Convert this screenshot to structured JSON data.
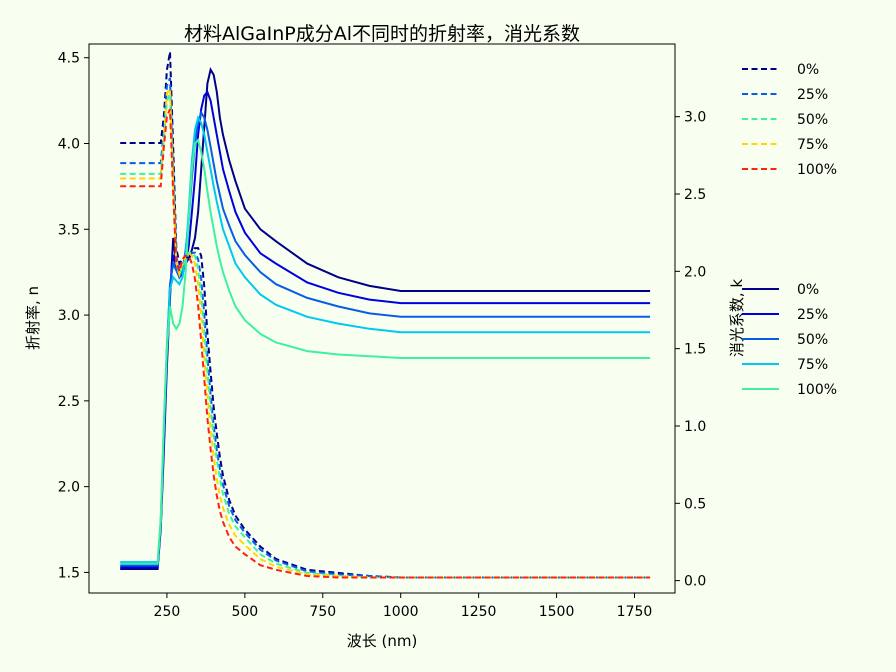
{
  "chart_data": {
    "type": "line",
    "title": "材料AlGaInP成分Al不同时的折射率，消光系数",
    "xlabel": "波长 (nm)",
    "ylabel_left": "折射率, n",
    "ylabel_right": "消光系数, k",
    "xlim": [
      0,
      1880
    ],
    "ylim_left": [
      1.38,
      4.58
    ],
    "ylim_right": [
      -0.08,
      3.47
    ],
    "x_ticks": [
      250,
      500,
      750,
      1000,
      1250,
      1500,
      1750
    ],
    "y_ticks_left": [
      1.5,
      2.0,
      2.5,
      3.0,
      3.5,
      4.0,
      4.5
    ],
    "y_ticks_right": [
      0.0,
      0.5,
      1.0,
      1.5,
      2.0,
      2.5,
      3.0
    ],
    "grid": false,
    "x": [
      100,
      220,
      230,
      240,
      250,
      260,
      270,
      280,
      290,
      300,
      310,
      320,
      330,
      340,
      350,
      360,
      370,
      380,
      390,
      400,
      410,
      420,
      430,
      450,
      470,
      500,
      550,
      600,
      700,
      800,
      900,
      1000,
      1200,
      1400,
      1600,
      1800
    ],
    "legend_n": {
      "placement": "outside right, lower",
      "entries": [
        "0%",
        "25%",
        "50%",
        "75%",
        "100%"
      ]
    },
    "legend_k": {
      "placement": "outside right, upper",
      "entries": [
        "0%",
        "25%",
        "50%",
        "75%",
        "100%"
      ]
    },
    "series_n": [
      {
        "name": "0%",
        "color": "#00008b",
        "axis": "left",
        "style": "solid",
        "values": [
          1.52,
          1.52,
          1.75,
          2.2,
          2.7,
          3.1,
          3.45,
          3.3,
          3.23,
          3.25,
          3.3,
          3.33,
          3.38,
          3.45,
          3.6,
          3.85,
          4.1,
          4.35,
          4.43,
          4.4,
          4.3,
          4.15,
          4.05,
          3.9,
          3.78,
          3.62,
          3.5,
          3.43,
          3.3,
          3.22,
          3.17,
          3.14,
          3.14,
          3.14,
          3.14,
          3.14
        ]
      },
      {
        "name": "25%",
        "color": "#0000e0",
        "axis": "left",
        "style": "solid",
        "values": [
          1.53,
          1.53,
          1.77,
          2.25,
          2.75,
          3.15,
          3.35,
          3.28,
          3.22,
          3.24,
          3.3,
          3.4,
          3.6,
          3.8,
          4.05,
          4.2,
          4.28,
          4.3,
          4.25,
          4.15,
          4.05,
          3.95,
          3.85,
          3.72,
          3.6,
          3.48,
          3.36,
          3.3,
          3.19,
          3.13,
          3.09,
          3.07,
          3.07,
          3.07,
          3.07,
          3.07
        ]
      },
      {
        "name": "50%",
        "color": "#0a5ce6",
        "axis": "left",
        "style": "solid",
        "values": [
          1.54,
          1.54,
          1.78,
          2.3,
          2.8,
          3.18,
          3.3,
          3.26,
          3.22,
          3.26,
          3.38,
          3.55,
          3.8,
          4.0,
          4.12,
          4.18,
          4.15,
          4.08,
          3.98,
          3.88,
          3.78,
          3.7,
          3.62,
          3.52,
          3.43,
          3.35,
          3.25,
          3.18,
          3.1,
          3.05,
          3.01,
          2.99,
          2.99,
          2.99,
          2.99,
          2.99
        ]
      },
      {
        "name": "75%",
        "color": "#00c8f0",
        "axis": "left",
        "style": "solid",
        "values": [
          1.56,
          1.56,
          1.8,
          2.35,
          2.82,
          3.15,
          3.22,
          3.2,
          3.18,
          3.22,
          3.35,
          3.6,
          3.9,
          4.08,
          4.15,
          4.12,
          4.05,
          3.95,
          3.85,
          3.75,
          3.66,
          3.58,
          3.5,
          3.4,
          3.3,
          3.22,
          3.12,
          3.06,
          2.99,
          2.95,
          2.92,
          2.9,
          2.9,
          2.9,
          2.9,
          2.9
        ]
      },
      {
        "name": "100%",
        "color": "#40f0a0",
        "axis": "left",
        "style": "solid",
        "values": [
          1.55,
          1.55,
          1.8,
          2.35,
          2.8,
          3.05,
          2.95,
          2.92,
          2.95,
          3.05,
          3.25,
          3.55,
          3.85,
          4.0,
          4.02,
          3.95,
          3.85,
          3.72,
          3.6,
          3.5,
          3.4,
          3.32,
          3.25,
          3.14,
          3.05,
          2.97,
          2.89,
          2.84,
          2.79,
          2.77,
          2.76,
          2.75,
          2.75,
          2.75,
          2.75,
          2.75
        ]
      }
    ],
    "series_k": [
      {
        "name": "0%",
        "color": "#00008b",
        "axis": "right",
        "style": "dashed",
        "values": [
          2.83,
          2.83,
          2.83,
          3.0,
          3.3,
          3.42,
          2.8,
          2.15,
          2.05,
          2.08,
          2.1,
          2.08,
          2.12,
          2.15,
          2.15,
          2.1,
          1.9,
          1.6,
          1.35,
          1.12,
          0.95,
          0.8,
          0.68,
          0.52,
          0.42,
          0.33,
          0.22,
          0.14,
          0.07,
          0.05,
          0.03,
          0.02,
          0.02,
          0.02,
          0.02,
          0.02
        ]
      },
      {
        "name": "25%",
        "color": "#0a5ce6",
        "axis": "right",
        "style": "dashed",
        "values": [
          2.7,
          2.7,
          2.7,
          2.9,
          3.2,
          3.25,
          2.65,
          2.1,
          2.0,
          2.05,
          2.1,
          2.12,
          2.12,
          2.12,
          2.08,
          1.95,
          1.72,
          1.45,
          1.2,
          1.0,
          0.84,
          0.72,
          0.62,
          0.48,
          0.39,
          0.31,
          0.2,
          0.13,
          0.06,
          0.04,
          0.03,
          0.02,
          0.02,
          0.02,
          0.02,
          0.02
        ]
      },
      {
        "name": "50%",
        "color": "#40f0a0",
        "axis": "right",
        "style": "dashed",
        "values": [
          2.63,
          2.63,
          2.63,
          2.85,
          3.1,
          3.15,
          2.6,
          2.05,
          1.98,
          2.03,
          2.08,
          2.12,
          2.12,
          2.1,
          2.02,
          1.85,
          1.6,
          1.35,
          1.12,
          0.93,
          0.78,
          0.66,
          0.56,
          0.43,
          0.35,
          0.28,
          0.17,
          0.11,
          0.05,
          0.03,
          0.02,
          0.02,
          0.02,
          0.02,
          0.02,
          0.02
        ]
      },
      {
        "name": "75%",
        "color": "#ffd700",
        "axis": "right",
        "style": "dashed",
        "values": [
          2.6,
          2.6,
          2.6,
          2.85,
          3.15,
          3.18,
          2.55,
          2.05,
          1.98,
          2.05,
          2.1,
          2.12,
          2.1,
          2.05,
          1.92,
          1.72,
          1.45,
          1.2,
          0.98,
          0.8,
          0.66,
          0.55,
          0.47,
          0.36,
          0.29,
          0.23,
          0.14,
          0.09,
          0.04,
          0.03,
          0.02,
          0.02,
          0.02,
          0.02,
          0.02,
          0.02
        ]
      },
      {
        "name": "100%",
        "color": "#ff2010",
        "axis": "right",
        "style": "dashed",
        "values": [
          2.55,
          2.55,
          2.55,
          2.8,
          3.0,
          3.05,
          2.5,
          2.05,
          2.0,
          2.08,
          2.1,
          2.1,
          2.05,
          1.95,
          1.78,
          1.55,
          1.3,
          1.05,
          0.85,
          0.68,
          0.55,
          0.45,
          0.38,
          0.28,
          0.22,
          0.17,
          0.1,
          0.07,
          0.03,
          0.02,
          0.02,
          0.02,
          0.02,
          0.02,
          0.02,
          0.02
        ]
      }
    ]
  }
}
